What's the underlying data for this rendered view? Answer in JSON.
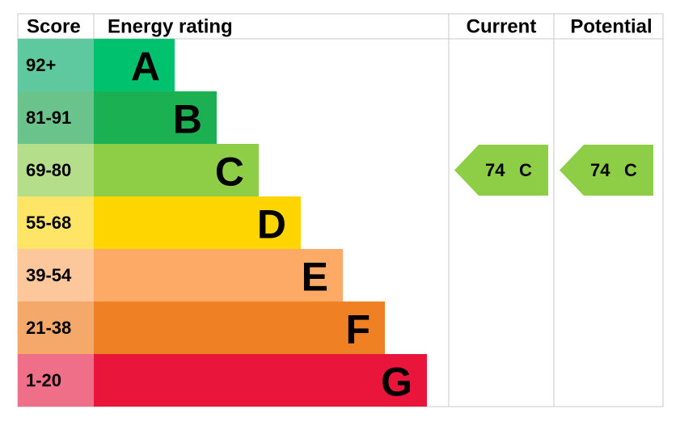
{
  "header": {
    "score": "Score",
    "energy_rating": "Energy rating",
    "current": "Current",
    "potential": "Potential"
  },
  "bands": [
    {
      "score": "92+",
      "letter": "A",
      "color": "#00c16e",
      "score_color": "#5ec89f"
    },
    {
      "score": "81-91",
      "letter": "B",
      "color": "#1bb153",
      "score_color": "#6ac38b"
    },
    {
      "score": "69-80",
      "letter": "C",
      "color": "#8dce46",
      "score_color": "#b5de8b"
    },
    {
      "score": "55-68",
      "letter": "D",
      "color": "#ffd500",
      "score_color": "#ffe566"
    },
    {
      "score": "39-54",
      "letter": "E",
      "color": "#fcaa65",
      "score_color": "#fdc79c"
    },
    {
      "score": "21-38",
      "letter": "F",
      "color": "#ef8023",
      "score_color": "#f4a86a"
    },
    {
      "score": "1-20",
      "letter": "G",
      "color": "#e9153b",
      "score_color": "#f06f88"
    }
  ],
  "current": {
    "score": "74",
    "band": "C"
  },
  "potential": {
    "score": "74",
    "band": "C"
  }
}
